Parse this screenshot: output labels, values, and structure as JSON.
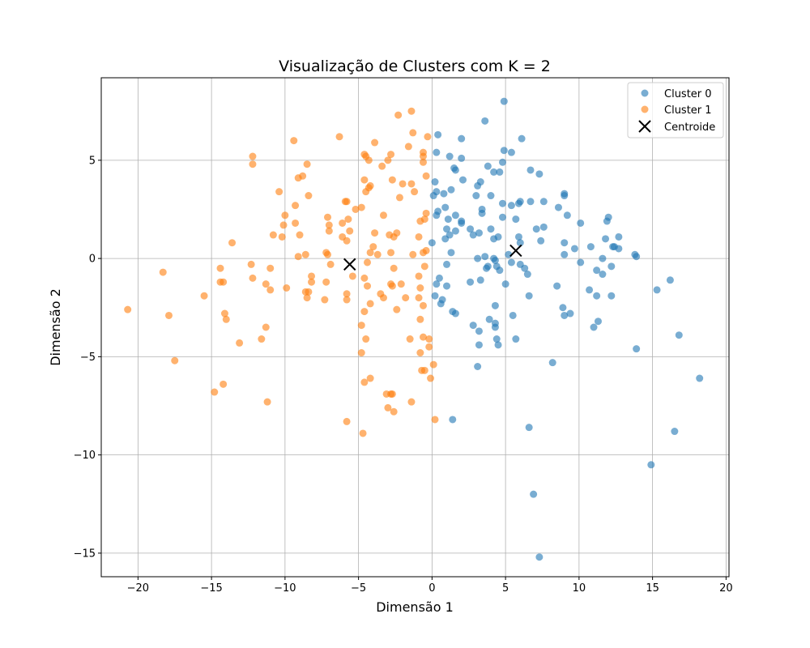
{
  "chart_data": {
    "type": "scatter",
    "title": "Visualização de Clusters com K = 2",
    "xlabel": "Dimensão 1",
    "ylabel": "Dimensão 2",
    "xlim": [
      -22.5,
      20.2
    ],
    "ylim": [
      -16.2,
      9.2
    ],
    "xticks": [
      -20,
      -15,
      -10,
      -5,
      0,
      5,
      10,
      15,
      20
    ],
    "yticks": [
      -15,
      -10,
      -5,
      0,
      5
    ],
    "xtick_labels": [
      "−20",
      "−15",
      "−10",
      "−5",
      "0",
      "5",
      "10",
      "15",
      "20"
    ],
    "ytick_labels": [
      "−15",
      "−10",
      "−5",
      "0",
      "5"
    ],
    "grid": true,
    "legend_position": "top-right",
    "legend": [
      "Cluster 0",
      "Cluster 1",
      "Centroide"
    ],
    "series": [
      {
        "name": "Cluster 0",
        "color": "#1f77b4",
        "marker": "circle",
        "points": [
          [
            4.9,
            8.0
          ],
          [
            3.6,
            7.0
          ],
          [
            0.4,
            6.3
          ],
          [
            2.0,
            6.1
          ],
          [
            6.1,
            6.1
          ],
          [
            0.3,
            5.4
          ],
          [
            1.2,
            5.2
          ],
          [
            2.0,
            5.1
          ],
          [
            4.9,
            5.5
          ],
          [
            5.4,
            5.4
          ],
          [
            4.8,
            4.9
          ],
          [
            1.5,
            4.6
          ],
          [
            1.6,
            4.5
          ],
          [
            3.8,
            4.7
          ],
          [
            4.2,
            4.4
          ],
          [
            4.6,
            4.4
          ],
          [
            6.7,
            4.5
          ],
          [
            7.3,
            4.3
          ],
          [
            0.2,
            3.9
          ],
          [
            2.1,
            4.0
          ],
          [
            3.3,
            3.9
          ],
          [
            3.1,
            3.7
          ],
          [
            1.3,
            3.5
          ],
          [
            0.3,
            3.4
          ],
          [
            0.1,
            3.2
          ],
          [
            0.8,
            3.3
          ],
          [
            3.0,
            3.2
          ],
          [
            4.0,
            3.2
          ],
          [
            6.0,
            2.9
          ],
          [
            5.9,
            2.8
          ],
          [
            6.7,
            2.9
          ],
          [
            7.6,
            2.9
          ],
          [
            9.0,
            3.3
          ],
          [
            9.0,
            3.2
          ],
          [
            0.9,
            2.6
          ],
          [
            0.4,
            2.4
          ],
          [
            0.3,
            2.2
          ],
          [
            1.6,
            2.2
          ],
          [
            3.4,
            2.5
          ],
          [
            3.4,
            2.3
          ],
          [
            4.8,
            2.8
          ],
          [
            4.8,
            2.1
          ],
          [
            5.4,
            2.7
          ],
          [
            5.7,
            2.0
          ],
          [
            7.1,
            1.5
          ],
          [
            7.6,
            1.6
          ],
          [
            8.6,
            2.6
          ],
          [
            9.2,
            2.2
          ],
          [
            10.1,
            1.8
          ],
          [
            12.0,
            2.1
          ],
          [
            11.9,
            1.9
          ],
          [
            1.1,
            2.0
          ],
          [
            1.0,
            1.5
          ],
          [
            1.2,
            1.2
          ],
          [
            1.6,
            1.4
          ],
          [
            2.0,
            1.9
          ],
          [
            2.0,
            1.8
          ],
          [
            2.6,
            1.5
          ],
          [
            2.8,
            1.2
          ],
          [
            3.2,
            1.3
          ],
          [
            4.0,
            1.5
          ],
          [
            4.2,
            1.0
          ],
          [
            4.5,
            1.1
          ],
          [
            5.9,
            1.1
          ],
          [
            6.0,
            0.8
          ],
          [
            7.4,
            0.9
          ],
          [
            9.0,
            0.8
          ],
          [
            9.7,
            0.5
          ],
          [
            10.8,
            0.6
          ],
          [
            11.8,
            1.0
          ],
          [
            12.3,
            0.6
          ],
          [
            12.4,
            0.6
          ],
          [
            12.7,
            1.1
          ],
          [
            12.7,
            0.5
          ],
          [
            0.9,
            1.0
          ],
          [
            0.0,
            0.8
          ],
          [
            1.3,
            0.3
          ],
          [
            3.1,
            0.0
          ],
          [
            3.6,
            0.1
          ],
          [
            4.2,
            0.0
          ],
          [
            4.3,
            -0.1
          ],
          [
            5.2,
            0.2
          ],
          [
            5.4,
            -0.2
          ],
          [
            6.0,
            -0.3
          ],
          [
            6.3,
            -0.5
          ],
          [
            9.0,
            0.2
          ],
          [
            10.1,
            -0.2
          ],
          [
            11.6,
            0.0
          ],
          [
            11.2,
            -0.6
          ],
          [
            12.2,
            -0.4
          ],
          [
            13.8,
            0.2
          ],
          [
            13.9,
            0.1
          ],
          [
            1.0,
            -0.3
          ],
          [
            0.5,
            -1.0
          ],
          [
            0.3,
            -1.3
          ],
          [
            1.0,
            -1.4
          ],
          [
            2.6,
            -1.2
          ],
          [
            3.3,
            -1.1
          ],
          [
            3.7,
            -0.5
          ],
          [
            3.8,
            -0.4
          ],
          [
            4.4,
            -0.4
          ],
          [
            4.6,
            -0.6
          ],
          [
            5.0,
            -1.3
          ],
          [
            6.5,
            -0.8
          ],
          [
            8.5,
            -1.4
          ],
          [
            10.7,
            -1.6
          ],
          [
            11.6,
            -0.8
          ],
          [
            11.2,
            -1.9
          ],
          [
            12.2,
            -1.9
          ],
          [
            15.3,
            -1.6
          ],
          [
            16.2,
            -1.1
          ],
          [
            0.2,
            -1.9
          ],
          [
            0.6,
            -2.3
          ],
          [
            0.7,
            -2.1
          ],
          [
            1.4,
            -2.7
          ],
          [
            1.6,
            -2.8
          ],
          [
            4.3,
            -2.4
          ],
          [
            6.6,
            -1.9
          ],
          [
            3.9,
            -3.1
          ],
          [
            4.3,
            -3.3
          ],
          [
            2.8,
            -3.4
          ],
          [
            4.3,
            -3.5
          ],
          [
            5.5,
            -2.9
          ],
          [
            8.9,
            -2.5
          ],
          [
            9.0,
            -2.9
          ],
          [
            9.4,
            -2.8
          ],
          [
            11.0,
            -3.5
          ],
          [
            11.3,
            -3.2
          ],
          [
            3.2,
            -3.7
          ],
          [
            4.4,
            -4.1
          ],
          [
            4.5,
            -4.4
          ],
          [
            5.7,
            -4.1
          ],
          [
            3.2,
            -4.4
          ],
          [
            13.9,
            -4.6
          ],
          [
            16.8,
            -3.9
          ],
          [
            8.2,
            -5.3
          ],
          [
            3.1,
            -5.5
          ],
          [
            18.2,
            -6.1
          ],
          [
            1.4,
            -8.2
          ],
          [
            6.6,
            -8.6
          ],
          [
            16.5,
            -8.8
          ],
          [
            14.9,
            -10.5
          ],
          [
            6.9,
            -12.0
          ],
          [
            7.3,
            -15.2
          ]
        ]
      },
      {
        "name": "Cluster 1",
        "color": "#ff7f0e",
        "marker": "circle",
        "points": [
          [
            -1.4,
            7.5
          ],
          [
            -2.3,
            7.3
          ],
          [
            -6.3,
            6.2
          ],
          [
            -1.3,
            6.4
          ],
          [
            -0.3,
            6.2
          ],
          [
            -9.4,
            6.0
          ],
          [
            -3.9,
            5.9
          ],
          [
            -1.6,
            5.7
          ],
          [
            -0.6,
            5.4
          ],
          [
            -12.2,
            5.2
          ],
          [
            -4.6,
            5.3
          ],
          [
            -4.5,
            5.2
          ],
          [
            -2.8,
            5.3
          ],
          [
            -0.6,
            5.2
          ],
          [
            -12.2,
            4.8
          ],
          [
            -8.5,
            4.8
          ],
          [
            -4.3,
            5.0
          ],
          [
            -3.0,
            5.0
          ],
          [
            -0.6,
            4.9
          ],
          [
            -3.4,
            4.7
          ],
          [
            -8.8,
            4.2
          ],
          [
            -9.1,
            4.1
          ],
          [
            -4.6,
            4.0
          ],
          [
            -2.7,
            4.0
          ],
          [
            -0.4,
            4.2
          ],
          [
            -4.2,
            3.7
          ],
          [
            -4.3,
            3.6
          ],
          [
            -1.4,
            3.8
          ],
          [
            -2.0,
            3.8
          ],
          [
            -10.4,
            3.4
          ],
          [
            -4.5,
            3.4
          ],
          [
            -8.4,
            3.2
          ],
          [
            -1.2,
            3.4
          ],
          [
            -2.2,
            3.1
          ],
          [
            -5.9,
            2.9
          ],
          [
            -5.8,
            2.9
          ],
          [
            -9.3,
            2.7
          ],
          [
            -5.2,
            2.5
          ],
          [
            -4.8,
            2.6
          ],
          [
            -0.4,
            2.3
          ],
          [
            -0.5,
            2.0
          ],
          [
            -0.8,
            1.9
          ],
          [
            -10.0,
            2.2
          ],
          [
            -7.1,
            2.1
          ],
          [
            -5.7,
            2.0
          ],
          [
            -3.3,
            2.2
          ],
          [
            -6.1,
            1.8
          ],
          [
            -10.1,
            1.7
          ],
          [
            -9.3,
            1.8
          ],
          [
            -7.0,
            1.7
          ],
          [
            -5.6,
            1.4
          ],
          [
            -3.9,
            1.3
          ],
          [
            -2.4,
            1.3
          ],
          [
            -2.9,
            1.2
          ],
          [
            -0.9,
            1.1
          ],
          [
            -10.8,
            1.2
          ],
          [
            -10.2,
            1.1
          ],
          [
            -9.0,
            1.2
          ],
          [
            -7.0,
            1.4
          ],
          [
            -6.1,
            1.1
          ],
          [
            -5.8,
            0.9
          ],
          [
            -4.0,
            0.6
          ],
          [
            -2.6,
            1.1
          ],
          [
            -13.6,
            0.8
          ],
          [
            -9.1,
            0.1
          ],
          [
            -8.6,
            0.2
          ],
          [
            -7.2,
            0.3
          ],
          [
            -7.1,
            0.2
          ],
          [
            -4.2,
            0.3
          ],
          [
            -3.7,
            0.2
          ],
          [
            -2.8,
            0.3
          ],
          [
            -1.3,
            0.2
          ],
          [
            -0.6,
            0.3
          ],
          [
            -0.4,
            0.4
          ],
          [
            -12.3,
            -0.3
          ],
          [
            -11.0,
            -0.5
          ],
          [
            -14.4,
            -0.5
          ],
          [
            -6.9,
            -0.3
          ],
          [
            -5.4,
            -0.9
          ],
          [
            -4.4,
            -0.2
          ],
          [
            -2.6,
            -0.5
          ],
          [
            -0.5,
            -0.4
          ],
          [
            -18.3,
            -0.7
          ],
          [
            -12.2,
            -1.0
          ],
          [
            -14.2,
            -1.2
          ],
          [
            -14.4,
            -1.2
          ],
          [
            -11.3,
            -1.3
          ],
          [
            -11.0,
            -1.6
          ],
          [
            -9.9,
            -1.5
          ],
          [
            -8.2,
            -1.2
          ],
          [
            -8.2,
            -0.9
          ],
          [
            -7.2,
            -1.2
          ],
          [
            -4.6,
            -1.0
          ],
          [
            -4.4,
            -1.4
          ],
          [
            -2.8,
            -1.3
          ],
          [
            -2.7,
            -1.4
          ],
          [
            -2.1,
            -1.3
          ],
          [
            -0.9,
            -0.9
          ],
          [
            -0.8,
            -1.5
          ],
          [
            -15.5,
            -1.9
          ],
          [
            -8.6,
            -1.7
          ],
          [
            -8.4,
            -1.7
          ],
          [
            -8.5,
            -2.0
          ],
          [
            -7.3,
            -2.1
          ],
          [
            -5.8,
            -1.8
          ],
          [
            -5.8,
            -2.1
          ],
          [
            -3.5,
            -1.8
          ],
          [
            -3.3,
            -2.0
          ],
          [
            -4.2,
            -2.3
          ],
          [
            -1.8,
            -2.0
          ],
          [
            -0.9,
            -2.0
          ],
          [
            -20.7,
            -2.6
          ],
          [
            -17.9,
            -2.9
          ],
          [
            -14.1,
            -2.8
          ],
          [
            -14.0,
            -3.1
          ],
          [
            -4.6,
            -2.7
          ],
          [
            -2.4,
            -2.6
          ],
          [
            -0.6,
            -2.4
          ],
          [
            -0.8,
            -3.1
          ],
          [
            -11.3,
            -3.5
          ],
          [
            -4.8,
            -3.4
          ],
          [
            -11.6,
            -4.1
          ],
          [
            -13.1,
            -4.3
          ],
          [
            -4.5,
            -4.1
          ],
          [
            -1.5,
            -4.1
          ],
          [
            -0.6,
            -4.0
          ],
          [
            -0.2,
            -4.1
          ],
          [
            -0.2,
            -4.5
          ],
          [
            -4.8,
            -4.8
          ],
          [
            -0.8,
            -4.8
          ],
          [
            -17.5,
            -5.2
          ],
          [
            0.1,
            -5.4
          ],
          [
            -4.2,
            -6.1
          ],
          [
            -4.6,
            -6.3
          ],
          [
            -0.7,
            -5.7
          ],
          [
            -0.5,
            -5.7
          ],
          [
            -0.1,
            -6.1
          ],
          [
            -14.2,
            -6.4
          ],
          [
            -2.8,
            -6.9
          ],
          [
            -2.7,
            -6.9
          ],
          [
            -3.1,
            -6.9
          ],
          [
            -14.8,
            -6.8
          ],
          [
            -11.2,
            -7.3
          ],
          [
            -1.4,
            -7.3
          ],
          [
            -3.0,
            -7.6
          ],
          [
            -2.6,
            -7.8
          ],
          [
            -5.8,
            -8.3
          ],
          [
            0.2,
            -8.2
          ],
          [
            -4.7,
            -8.9
          ]
        ]
      },
      {
        "name": "Centroide",
        "color": "#000000",
        "marker": "x",
        "points": [
          [
            5.7,
            0.4
          ],
          [
            -5.6,
            -0.3
          ]
        ]
      }
    ]
  }
}
